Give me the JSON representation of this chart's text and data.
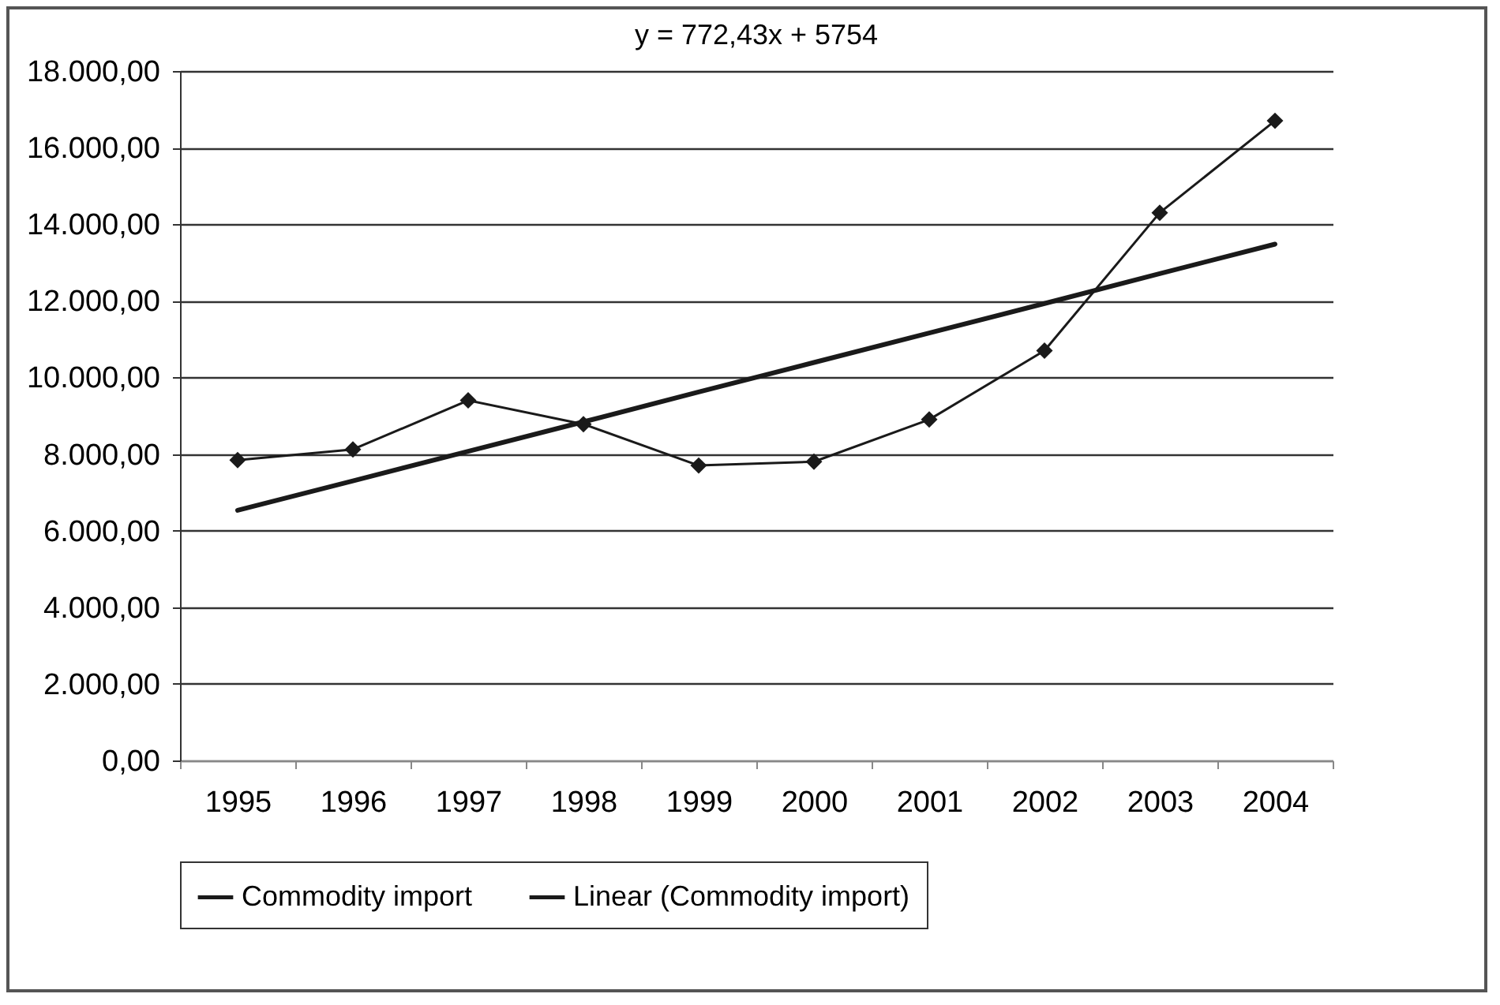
{
  "chart_data": {
    "type": "line",
    "title": "y = 772,43x + 5754",
    "categories": [
      "1995",
      "1996",
      "1997",
      "1998",
      "1999",
      "2000",
      "2001",
      "2002",
      "2003",
      "2004"
    ],
    "series": [
      {
        "name": "Commodity import",
        "color": "#1a1a1a",
        "marker": "diamond",
        "values": [
          7840,
          8120,
          9400,
          8780,
          7700,
          7800,
          8900,
          10700,
          14300,
          16700
        ]
      },
      {
        "name": "Linear (Commodity import)",
        "color": "#1a1a1a",
        "type": "line",
        "marker": "none",
        "values": [
          6530,
          7300,
          8070,
          8840,
          9620,
          10390,
          11160,
          11930,
          12710,
          13480
        ]
      }
    ],
    "ylim": [
      0,
      18000
    ],
    "yticks": [
      {
        "value": 0,
        "label": "0,00"
      },
      {
        "value": 2000,
        "label": "2.000,00"
      },
      {
        "value": 4000,
        "label": "4.000,00"
      },
      {
        "value": 6000,
        "label": "6.000,00"
      },
      {
        "value": 8000,
        "label": "8.000,00"
      },
      {
        "value": 10000,
        "label": "10.000,00"
      },
      {
        "value": 12000,
        "label": "12.000,00"
      },
      {
        "value": 14000,
        "label": "14.000,00"
      },
      {
        "value": 16000,
        "label": "16.000,00"
      },
      {
        "value": 18000,
        "label": "18.000,00"
      }
    ],
    "grid": "y",
    "legend": "bottom"
  }
}
